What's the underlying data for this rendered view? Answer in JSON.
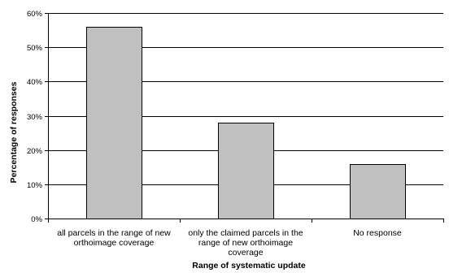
{
  "chart_data": {
    "type": "bar",
    "title": "",
    "xlabel": "Range of systematic update",
    "ylabel": "Percentage of responses",
    "categories": [
      [
        "all parcels in the range of new",
        "orthoimage coverage"
      ],
      [
        "only the claimed parcels in the",
        "range of new orthoimage",
        "coverage"
      ],
      [
        "No response"
      ]
    ],
    "values": [
      56,
      28,
      16
    ],
    "ylim": [
      0,
      60
    ],
    "yticks": [
      "0%",
      "10%",
      "20%",
      "30%",
      "40%",
      "50%",
      "60%"
    ],
    "ytick_values": [
      0,
      10,
      20,
      30,
      40,
      50,
      60
    ],
    "grid": true,
    "legend": "none",
    "bar_color": "#c0c0c0",
    "bar_edge_color": "#000000",
    "grid_color": "#000000"
  }
}
